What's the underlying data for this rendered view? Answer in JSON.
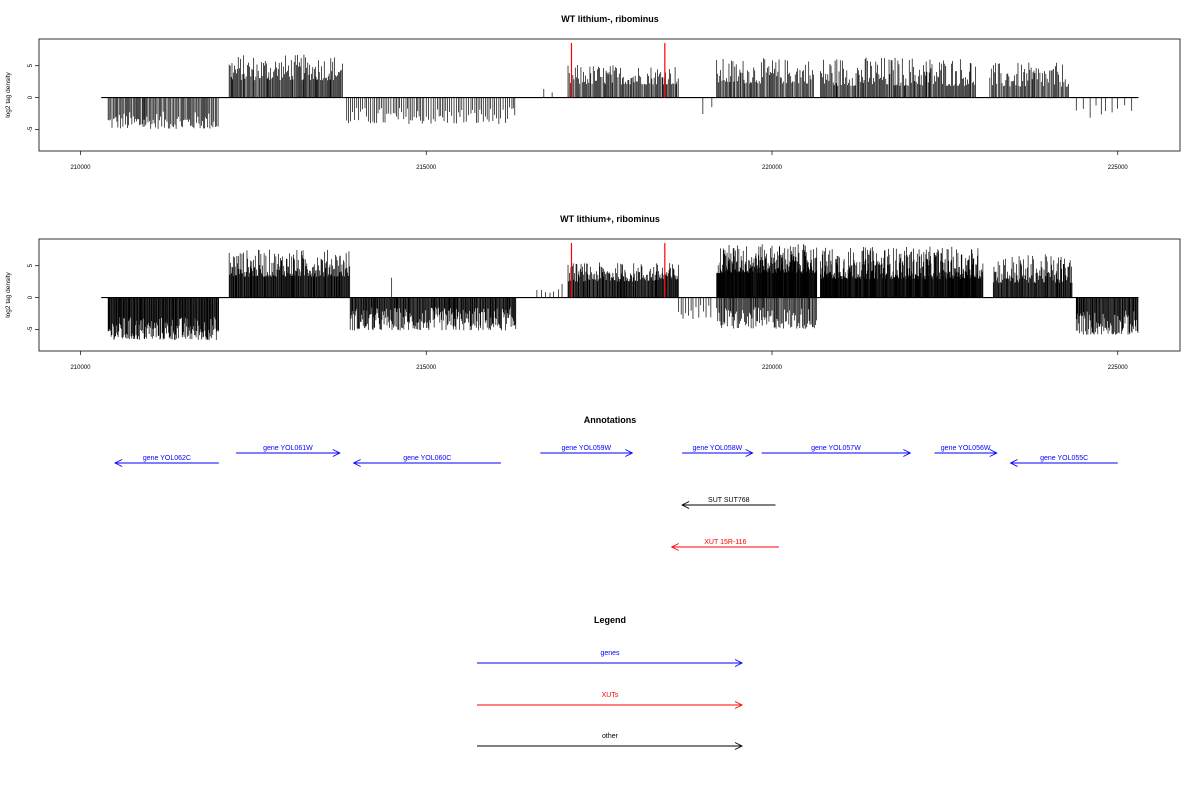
{
  "colors": {
    "gene": "#0000ff",
    "xut": "#ff0000",
    "other": "#000000",
    "marker": "#ff0000",
    "bars": "#000000"
  },
  "chart_data": [
    {
      "type": "bar",
      "title": "WT lithium-, ribominus",
      "xlabel": "",
      "ylabel": "log2 tag density",
      "xlim": [
        209400,
        225900
      ],
      "ylim": [
        -8.4,
        9.2
      ],
      "xticks": [
        "210000",
        "215000",
        "220000",
        "225000"
      ],
      "xtick_values": [
        210000,
        215000,
        220000,
        225000
      ],
      "yticks": [
        "-5",
        "0",
        "5"
      ],
      "ytick_values": [
        -5,
        0,
        5
      ],
      "baseline": [
        210300,
        225300
      ],
      "markers": [
        217100,
        218450
      ],
      "segments": [
        {
          "x0": 210400,
          "x1": 212000,
          "min": -5.4,
          "max": -2.2,
          "step": 17
        },
        {
          "x0": 212150,
          "x1": 213800,
          "min": 2.0,
          "max": 6.8,
          "step": 14
        },
        {
          "x0": 213850,
          "x1": 216300,
          "min": -4.6,
          "max": -1.5,
          "step": 28
        },
        {
          "x0": 216700,
          "x1": 216900,
          "min": 0.5,
          "max": 1.5,
          "step": 110
        },
        {
          "x0": 217050,
          "x1": 218650,
          "min": 1.5,
          "max": 5.2,
          "step": 16
        },
        {
          "x0": 219000,
          "x1": 219200,
          "min": -3.5,
          "max": -1.0,
          "step": 120
        },
        {
          "x0": 219200,
          "x1": 220600,
          "min": 1.5,
          "max": 6.2,
          "step": 16
        },
        {
          "x0": 220700,
          "x1": 222950,
          "min": 1.0,
          "max": 6.5,
          "step": 15
        },
        {
          "x0": 223150,
          "x1": 224300,
          "min": 1.0,
          "max": 5.5,
          "step": 17
        },
        {
          "x0": 224400,
          "x1": 225250,
          "min": -3.6,
          "max": -1.2,
          "step": 85
        }
      ]
    },
    {
      "type": "bar",
      "title": "WT lithium+, ribominus",
      "xlabel": "",
      "ylabel": "log2 tag density",
      "xlim": [
        209400,
        225900
      ],
      "ylim": [
        -8.4,
        9.2
      ],
      "xticks": [
        "210000",
        "215000",
        "220000",
        "225000"
      ],
      "xtick_values": [
        210000,
        215000,
        220000,
        225000
      ],
      "yticks": [
        "-5",
        "0",
        "5"
      ],
      "ytick_values": [
        -5,
        0,
        5
      ],
      "baseline": [
        210300,
        225300
      ],
      "markers": [
        217100,
        218450
      ],
      "segments": [
        {
          "x0": 210400,
          "x1": 212000,
          "min": -7.3,
          "max": -3.0,
          "step": 9
        },
        {
          "x0": 212150,
          "x1": 213900,
          "min": 2.5,
          "max": 7.6,
          "step": 9
        },
        {
          "x0": 213900,
          "x1": 216300,
          "min": -5.8,
          "max": -1.5,
          "step": 10
        },
        {
          "x0": 214500,
          "x1": 214550,
          "min": 3.0,
          "max": 3.4,
          "step": 200
        },
        {
          "x0": 216600,
          "x1": 217000,
          "min": 0.5,
          "max": 2.2,
          "step": 60
        },
        {
          "x0": 217050,
          "x1": 218650,
          "min": 2.0,
          "max": 5.5,
          "step": 10
        },
        {
          "x0": 218650,
          "x1": 219150,
          "min": -3.8,
          "max": -1.0,
          "step": 35
        },
        {
          "x0": 219200,
          "x1": 220650,
          "min": 3.0,
          "max": 8.4,
          "step": 6
        },
        {
          "x0": 219200,
          "x1": 220650,
          "min": -5.5,
          "max": -1.5,
          "step": 14
        },
        {
          "x0": 220700,
          "x1": 223050,
          "min": 2.0,
          "max": 8.0,
          "step": 7
        },
        {
          "x0": 223200,
          "x1": 224350,
          "min": 1.5,
          "max": 6.8,
          "step": 10
        },
        {
          "x0": 224400,
          "x1": 225300,
          "min": -6.5,
          "max": -2.0,
          "step": 10
        }
      ]
    }
  ],
  "annotations": {
    "title": "Annotations",
    "genes": [
      {
        "label": "gene YOL062C",
        "start": 210500,
        "end": 212000,
        "strand": "-",
        "row": 2
      },
      {
        "label": "gene YOL061W",
        "start": 212250,
        "end": 213750,
        "strand": "+",
        "row": 1
      },
      {
        "label": "gene YOL060C",
        "start": 213950,
        "end": 216080,
        "strand": "-",
        "row": 2
      },
      {
        "label": "gene YOL059W",
        "start": 216650,
        "end": 217980,
        "strand": "+",
        "row": 1
      },
      {
        "label": "gene YOL058W",
        "start": 218700,
        "end": 219720,
        "strand": "+",
        "row": 1
      },
      {
        "label": "gene YOL057W",
        "start": 219850,
        "end": 222000,
        "strand": "+",
        "row": 1
      },
      {
        "label": "gene YOL056W",
        "start": 222350,
        "end": 223250,
        "strand": "+",
        "row": 1
      },
      {
        "label": "gene YOL055C",
        "start": 223450,
        "end": 225000,
        "strand": "-",
        "row": 2
      }
    ],
    "others": [
      {
        "label": "SUT SUT768",
        "start": 218700,
        "end": 220050,
        "strand": "-",
        "kind": "other"
      },
      {
        "label": "XUT 15R-116",
        "start": 218550,
        "end": 220100,
        "strand": "-",
        "kind": "xut"
      }
    ]
  },
  "legend": {
    "title": "Legend",
    "items": [
      {
        "label": "genes",
        "kind": "gene"
      },
      {
        "label": "XUTs",
        "kind": "xut"
      },
      {
        "label": "other",
        "kind": "other"
      }
    ]
  }
}
